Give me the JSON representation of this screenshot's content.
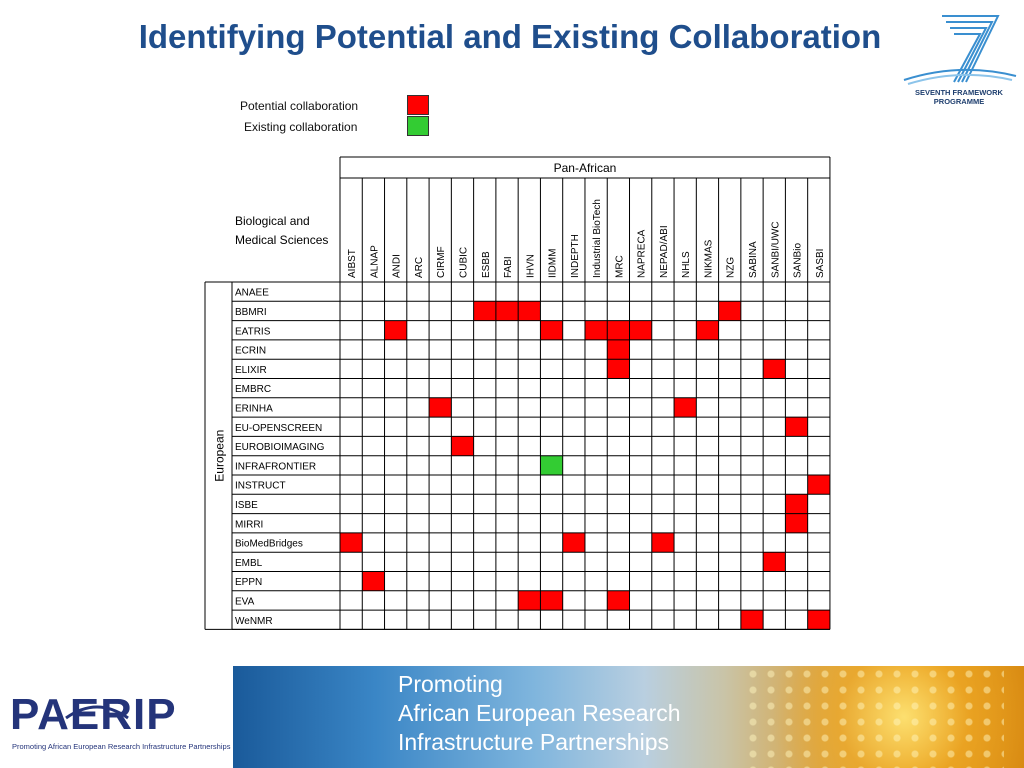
{
  "title": "Identifying Potential and Existing Collaboration",
  "fp7_logo": {
    "line1": "SEVENTH FRAMEWORK",
    "line2": "PROGRAMME"
  },
  "legend": {
    "potential": {
      "label": "Potential collaboration",
      "color": "#ff0000"
    },
    "existing": {
      "label": "Existing collaboration",
      "color": "#33cc33"
    }
  },
  "matrix": {
    "column_group_label": "Pan-African",
    "row_group_label": "European",
    "corner_label_line1": "Biological and",
    "corner_label_line2": "Medical Sciences",
    "columns": [
      "AIBST",
      "ALNAP",
      "ANDI",
      "ARC",
      "CIRMF",
      "CUBIC",
      "ESBB",
      "FABI",
      "IHVN",
      "IIDMM",
      "INDEPTH",
      "Industrial BioTech",
      "MRC",
      "NAPRECA",
      "NEPAD/ABI",
      "NHLS",
      "NIKMAS",
      "NZG",
      "SABINA",
      "SANBI/UWC",
      "SANBio",
      "SASBI"
    ],
    "rows": [
      "ANAEE",
      "BBMRI",
      "EATRIS",
      "ECRIN",
      "ELIXIR",
      "EMBRC",
      "ERINHA",
      "EU-OPENSCREEN",
      "EUROBIOIMAGING",
      "INFRAFRONTIER",
      "INSTRUCT",
      "ISBE",
      "MIRRI",
      "BioMedBridges",
      "EMBL",
      "EPPN",
      "EVA",
      "WeNMR"
    ],
    "potential": [
      [
        1,
        6
      ],
      [
        1,
        7
      ],
      [
        1,
        8
      ],
      [
        1,
        17
      ],
      [
        2,
        2
      ],
      [
        2,
        9
      ],
      [
        2,
        11
      ],
      [
        2,
        12
      ],
      [
        2,
        13
      ],
      [
        2,
        16
      ],
      [
        3,
        12
      ],
      [
        4,
        12
      ],
      [
        4,
        19
      ],
      [
        6,
        4
      ],
      [
        6,
        15
      ],
      [
        7,
        20
      ],
      [
        8,
        5
      ],
      [
        10,
        21
      ],
      [
        11,
        20
      ],
      [
        12,
        20
      ],
      [
        13,
        0
      ],
      [
        13,
        10
      ],
      [
        13,
        14
      ],
      [
        14,
        19
      ],
      [
        15,
        1
      ],
      [
        16,
        8
      ],
      [
        16,
        9
      ],
      [
        16,
        12
      ],
      [
        17,
        18
      ],
      [
        17,
        21
      ]
    ],
    "existing": [
      [
        9,
        9
      ]
    ]
  },
  "footer": {
    "line1": "Promoting",
    "line2": "African European Research",
    "line3": "Infrastructure Partnerships"
  },
  "paerip_logo": {
    "word": "PAERIP",
    "tagline": "Promoting African European Research Infrastructure Partnerships",
    "color": "#24347a"
  }
}
